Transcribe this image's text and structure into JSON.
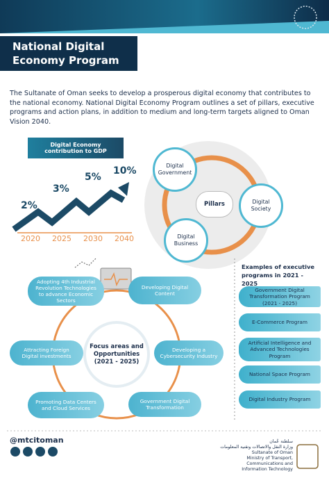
{
  "header": {
    "title": "National Digital Economy Program"
  },
  "intro": "The Sultanate of Oman seeks to develop a prosperous digital economy that contributes to the national economy. National Digital Economy Program outlines a set of pillars, executive programs and action plans, in addition to medium and long-term targets aligned to Oman Vision 2040.",
  "gdp": {
    "title": "Digital Economy contribution to GDP",
    "points": [
      {
        "year": "2020",
        "label": "2%"
      },
      {
        "year": "2025",
        "label": "3%"
      },
      {
        "year": "2030",
        "label": "5%"
      },
      {
        "year": "2040",
        "label": "10%"
      }
    ]
  },
  "pillars": {
    "center": "Pillars",
    "items": [
      "Digital Government",
      "Digital Society",
      "Digital Business"
    ]
  },
  "focus": {
    "center": "Focus areas and Opportunities (2021 - 2025)",
    "items": [
      "Adopting 4th Industrial Revolution Technologies to advance Economic Sectors",
      "Developing Digital Content",
      "Attracting Foreign Digital investments",
      "Developing a Cybersecurity Industry",
      "Promoting Data Centers and Cloud Services",
      "Government Digital Transformation"
    ]
  },
  "examples": {
    "title": "Examples of executive programs in 2021 - 2025",
    "items": [
      "Government Digital Transformation Program (2021 - 2025)",
      "E-Commerce Program",
      "Artificial Intelligence and Advanced Technologies Program",
      "National Space Program",
      "Digital Industry Program"
    ]
  },
  "footer": {
    "handle": "@mtcitoman",
    "arabic": [
      "سلطنة عُمان",
      "وزارة النقل والاتصالات وتقنية المعلومات"
    ],
    "english": [
      "Sultanate of Oman",
      "Ministry of Transport, Communications and Information Technology"
    ]
  }
}
